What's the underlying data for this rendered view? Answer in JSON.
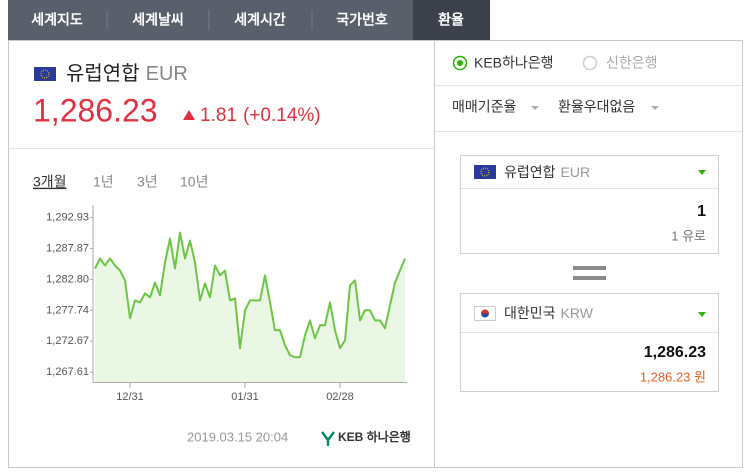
{
  "tabs": [
    "세계지도",
    "세계날씨",
    "세계시간",
    "국가번호",
    "환율"
  ],
  "header": {
    "currency": "유럽연합",
    "code": "EUR",
    "rate": "1,286.23",
    "change": "1.81",
    "change_pct": "(+0.14%)"
  },
  "periods": [
    "3개월",
    "1년",
    "3년",
    "10년"
  ],
  "footer": {
    "timestamp": "2019.03.15 20:04",
    "bank": "KEB 하나은행"
  },
  "converter": {
    "banks": [
      "KEB하나은행",
      "신한은행"
    ],
    "options": [
      "매매기준율",
      "환율우대없음"
    ],
    "from": {
      "name": "유럽연합",
      "code": "EUR",
      "amount": "1",
      "amount_text": "1 유로"
    },
    "to": {
      "name": "대한민국",
      "code": "KRW",
      "amount": "1,286.23",
      "amount_text": "1,286.23 원"
    }
  },
  "chart_data": {
    "type": "line",
    "color": "#6cc644",
    "categories": [
      null,
      null,
      null,
      null,
      null,
      null,
      null,
      "12/31",
      null,
      null,
      null,
      null,
      null,
      null,
      null,
      null,
      null,
      null,
      null,
      null,
      null,
      null,
      null,
      null,
      null,
      null,
      null,
      null,
      null,
      null,
      "01/31",
      null,
      null,
      null,
      null,
      null,
      null,
      null,
      null,
      null,
      null,
      null,
      null,
      null,
      null,
      null,
      null,
      null,
      null,
      "02/28",
      null,
      null,
      null,
      null,
      null,
      null,
      null,
      null,
      null,
      null,
      null,
      null,
      null
    ],
    "values": [
      1284.6,
      1286.23,
      1285.09,
      1286.23,
      1285.09,
      1284.27,
      1282.64,
      1276.43,
      1279.37,
      1279.05,
      1280.52,
      1279.86,
      1282.31,
      1280.19,
      1285.58,
      1289.5,
      1284.6,
      1290.48,
      1286.23,
      1289.17,
      1285.58,
      1279.37,
      1282.15,
      1279.86,
      1285.09,
      1283.46,
      1284.27,
      1279.37,
      1279.7,
      1271.53,
      1277.74,
      1279.37,
      1279.37,
      1279.37,
      1283.46,
      1279.05,
      1274.47,
      1274.47,
      1272.02,
      1270.39,
      1270.06,
      1270.06,
      1273.65,
      1276.1,
      1273.16,
      1275.29,
      1275.29,
      1279.05,
      1274.47,
      1271.53,
      1272.84,
      1281.82,
      1282.64,
      1276.1,
      1277.74,
      1277.74,
      1276.1,
      1276.1,
      1274.8,
      1278.56,
      1282.31,
      1284.27,
      1286.23
    ],
    "ylim": [
      1266,
      1295
    ],
    "yticks": [
      {
        "value": 1292.93,
        "label": "1,292.93"
      },
      {
        "value": 1287.87,
        "label": "1,287.87"
      },
      {
        "value": 1282.8,
        "label": "1,282.80"
      },
      {
        "value": 1277.74,
        "label": "1,277.74"
      },
      {
        "value": 1272.67,
        "label": "1,272.67"
      },
      {
        "value": 1267.61,
        "label": "1,267.61"
      }
    ]
  }
}
